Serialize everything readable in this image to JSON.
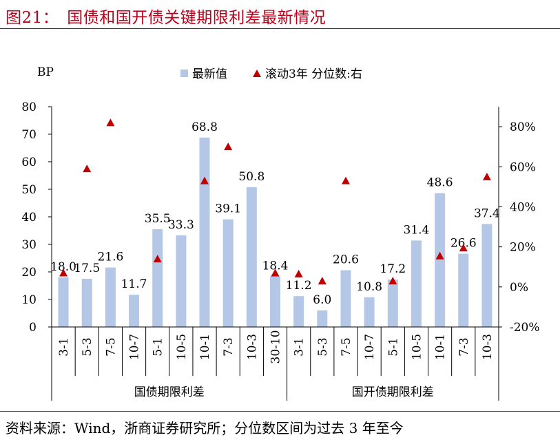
{
  "figure_title": "图21：　国债和国开债关键期限利差最新情况",
  "source_note": "资料来源：Wind，浙商证券研究所；分位数区间为过去 3 年至今",
  "chart_data": {
    "type": "bar",
    "y_left_label": "BP",
    "y_left_ticks": [
      "0",
      "10",
      "20",
      "30",
      "40",
      "50",
      "60",
      "70",
      "80"
    ],
    "y_left_lim": [
      0,
      80
    ],
    "y_right_ticks": [
      "-20%",
      "0%",
      "20%",
      "40%",
      "60%",
      "80%"
    ],
    "y_right_lim": [
      -0.2,
      0.9
    ],
    "groups": [
      {
        "name": "国债期限利差",
        "categories": [
          "3-1",
          "5-3",
          "7-5",
          "10-7",
          "5-1",
          "10-5",
          "10-1",
          "7-3",
          "10-3",
          "30-10"
        ]
      },
      {
        "name": "国开债期限利差",
        "categories": [
          "3-1",
          "5-3",
          "7-5",
          "10-7",
          "5-1",
          "10-5",
          "10-1",
          "7-3",
          "10-3"
        ]
      }
    ],
    "series": [
      {
        "name": "最新值",
        "kind": "bar",
        "axis": "left",
        "color": "#b4c7e7",
        "values": [
          18.0,
          17.5,
          21.6,
          11.7,
          35.5,
          33.3,
          68.8,
          39.1,
          50.8,
          18.4,
          11.2,
          6.0,
          20.6,
          10.8,
          17.2,
          31.4,
          48.6,
          26.6,
          37.4
        ],
        "labels": [
          "18.0",
          "17.5",
          "21.6",
          "11.7",
          "35.5",
          "33.3",
          "68.8",
          "39.1",
          "50.8",
          "18.4",
          "11.2",
          "6.0",
          "20.6",
          "10.8",
          "17.2",
          "31.4",
          "48.6",
          "26.6",
          "37.4"
        ]
      },
      {
        "name": "滚动3年 分位数:右",
        "kind": "triangle",
        "axis": "right",
        "color": "#c00000",
        "values": [
          0.07,
          0.59,
          0.82,
          null,
          0.14,
          null,
          0.53,
          0.7,
          null,
          0.07,
          0.065,
          0.03,
          0.53,
          null,
          0.03,
          null,
          0.155,
          0.195,
          0.55
        ]
      }
    ]
  }
}
